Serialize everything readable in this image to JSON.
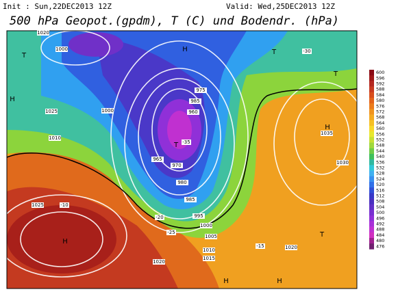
{
  "header": {
    "init": "Init : Sun,22DEC2013 12Z",
    "valid": "Valid: Wed,25DEC2013 12Z",
    "title": "500 hPa Geopot.(gpdm), T (C) und Bodendr. (hPa)"
  },
  "colorbar": {
    "labels": [
      "600",
      "596",
      "592",
      "588",
      "584",
      "580",
      "576",
      "572",
      "568",
      "564",
      "560",
      "556",
      "552",
      "548",
      "544",
      "540",
      "536",
      "532",
      "528",
      "524",
      "520",
      "516",
      "512",
      "508",
      "504",
      "500",
      "496",
      "492",
      "488",
      "484",
      "480",
      "476"
    ],
    "colors": [
      "#8b0a14",
      "#a01818",
      "#b42820",
      "#c83a20",
      "#d84e1c",
      "#e4641a",
      "#ec7c1c",
      "#f0941e",
      "#f4aa20",
      "#f6c024",
      "#f8d82a",
      "#e8e830",
      "#c8e034",
      "#a0d83c",
      "#70cc48",
      "#40c05c",
      "#30b8a0",
      "#30c8d8",
      "#40b0f0",
      "#3890f0",
      "#3070e8",
      "#3050d8",
      "#3838c8",
      "#4a30c0",
      "#6030c8",
      "#7830d0",
      "#9030d8",
      "#a830d8",
      "#c030d0",
      "#d030c0",
      "#a02090",
      "#702070"
    ]
  },
  "map": {
    "centers": [
      "H",
      "H",
      "H",
      "H",
      "T",
      "T",
      "T",
      "T",
      "H",
      "H",
      "T"
    ],
    "isobars": [
      "1020",
      "1000",
      "1025",
      "1010",
      "1000",
      "975",
      "985",
      "960",
      "965",
      "970",
      "980",
      "985",
      "995",
      "1000",
      "1005",
      "1010",
      "1015",
      "1020",
      "1020",
      "1025",
      "1030",
      "1035"
    ],
    "temperatures": [
      "-10",
      "-15",
      "-20",
      "-25",
      "-30",
      "-35"
    ]
  }
}
